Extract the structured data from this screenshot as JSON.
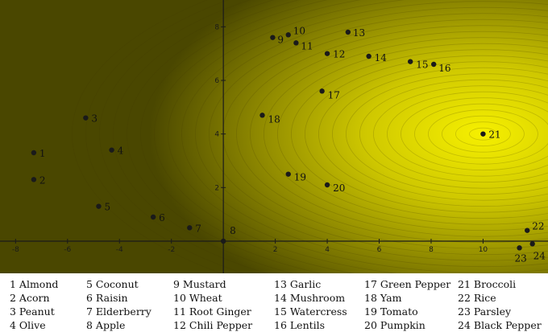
{
  "chart_data": {
    "type": "scatter",
    "title": "",
    "xlabel": "",
    "ylabel": "",
    "xlim": [
      -8.6,
      12.5
    ],
    "ylim": [
      -1.2,
      9.0
    ],
    "x_ticks": [
      -8,
      -6,
      -4,
      -2,
      2,
      4,
      6,
      8,
      10
    ],
    "y_ticks": [
      2,
      4,
      6,
      8
    ],
    "background": "radial yellow gradient contour, brightest near (10, 4), dark olive toward edges",
    "colors": {
      "bright": "#f6f000",
      "mid": "#b6b000",
      "dark": "#4a4700",
      "point": "#1a1a1a"
    },
    "points": [
      {
        "id": "1",
        "name": "Almond",
        "x": -7.3,
        "y": 3.3
      },
      {
        "id": "2",
        "name": "Acorn",
        "x": -7.3,
        "y": 2.3
      },
      {
        "id": "3",
        "name": "Peanut",
        "x": -5.3,
        "y": 4.6
      },
      {
        "id": "4",
        "name": "Olive",
        "x": -4.3,
        "y": 3.4
      },
      {
        "id": "5",
        "name": "Coconut",
        "x": -4.8,
        "y": 1.3
      },
      {
        "id": "6",
        "name": "Raisin",
        "x": -2.7,
        "y": 0.9
      },
      {
        "id": "7",
        "name": "Elderberry",
        "x": -1.3,
        "y": 0.5
      },
      {
        "id": "8",
        "name": "Apple",
        "x": 0.0,
        "y": 0.0
      },
      {
        "id": "9",
        "name": "Mustard",
        "x": 1.9,
        "y": 7.6
      },
      {
        "id": "10",
        "name": "Wheat",
        "x": 2.5,
        "y": 7.7
      },
      {
        "id": "11",
        "name": "Root Ginger",
        "x": 2.8,
        "y": 7.4
      },
      {
        "id": "12",
        "name": "Chili Pepper",
        "x": 4.0,
        "y": 7.0
      },
      {
        "id": "13",
        "name": "Garlic",
        "x": 4.8,
        "y": 7.8
      },
      {
        "id": "14",
        "name": "Mushroom",
        "x": 5.6,
        "y": 6.9
      },
      {
        "id": "15",
        "name": "Watercress",
        "x": 7.2,
        "y": 6.7
      },
      {
        "id": "16",
        "name": "Lentils",
        "x": 8.1,
        "y": 6.6
      },
      {
        "id": "17",
        "name": "Green Pepper",
        "x": 3.8,
        "y": 5.6
      },
      {
        "id": "18",
        "name": "Yam",
        "x": 1.5,
        "y": 4.7
      },
      {
        "id": "19",
        "name": "Tomato",
        "x": 2.5,
        "y": 2.5
      },
      {
        "id": "20",
        "name": "Pumpkin",
        "x": 4.0,
        "y": 2.1
      },
      {
        "id": "21",
        "name": "Broccoli",
        "x": 10.0,
        "y": 4.0
      },
      {
        "id": "22",
        "name": "Rice",
        "x": 11.7,
        "y": 0.4
      },
      {
        "id": "23",
        "name": "Parsley",
        "x": 11.4,
        "y": -0.25
      },
      {
        "id": "24",
        "name": "Black Pepper",
        "x": 11.9,
        "y": -0.1
      }
    ]
  },
  "legend": {
    "columns": [
      [
        "1 Almond",
        "2 Acorn",
        "3 Peanut",
        "4 Olive"
      ],
      [
        "5 Coconut",
        "6 Raisin",
        "7 Elderberry",
        "8 Apple"
      ],
      [
        "9 Mustard",
        "10 Wheat",
        "11 Root Ginger",
        "12 Chili Pepper"
      ],
      [
        "13 Garlic",
        "14 Mushroom",
        "15 Watercress",
        "16 Lentils"
      ],
      [
        "17 Green Pepper",
        "18 Yam",
        "19 Tomato",
        "20 Pumpkin"
      ],
      [
        "21 Broccoli",
        "22 Rice",
        "23 Parsley",
        "24 Black Pepper"
      ]
    ]
  }
}
